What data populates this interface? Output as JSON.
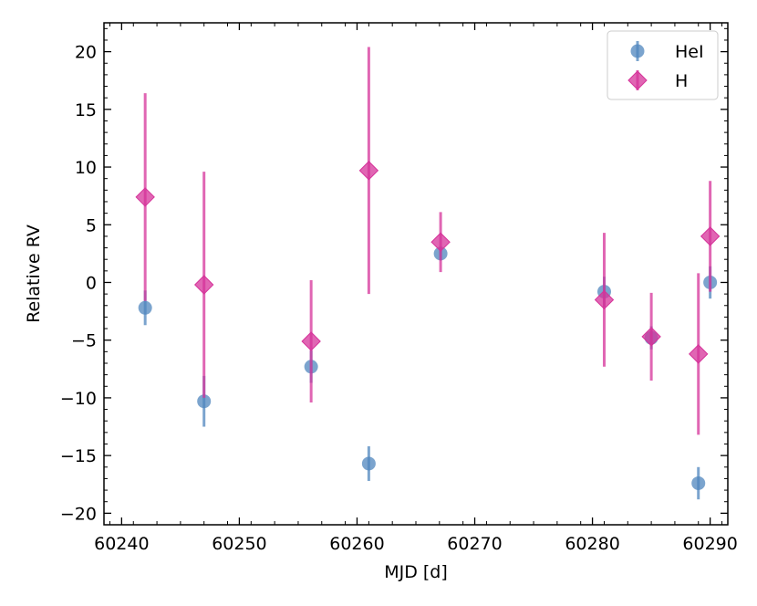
{
  "chart_data": {
    "type": "scatter",
    "xlabel": "MJD [d]",
    "ylabel": "Relative RV",
    "xlim": [
      60238.5,
      60291.5
    ],
    "ylim": [
      -21,
      22.5
    ],
    "xticks": [
      60240,
      60250,
      60260,
      60270,
      60280,
      60290
    ],
    "yticks": [
      -20,
      -15,
      -10,
      -5,
      0,
      5,
      10,
      15,
      20
    ],
    "grid": false,
    "legend_position": "top-right",
    "series": [
      {
        "name": "HeI",
        "marker": "circle",
        "color": "#4f86bd",
        "points": [
          {
            "x": 60242,
            "y": -2.2,
            "err": 1.5
          },
          {
            "x": 60247,
            "y": -10.3,
            "err": 2.2
          },
          {
            "x": 60256.1,
            "y": -7.3,
            "err": 1.4
          },
          {
            "x": 60261,
            "y": -15.7,
            "err": 1.5
          },
          {
            "x": 60267.1,
            "y": 2.5,
            "err": 0.6
          },
          {
            "x": 60281,
            "y": -0.8,
            "err": 1.3
          },
          {
            "x": 60285,
            "y": -4.8,
            "err": 1.0
          },
          {
            "x": 60289,
            "y": -17.4,
            "err": 1.4
          },
          {
            "x": 60290,
            "y": 0.0,
            "err": 1.4
          }
        ]
      },
      {
        "name": "H",
        "marker": "diamond",
        "color": "#d6339a",
        "points": [
          {
            "x": 60242,
            "y": 7.4,
            "err": 9.0
          },
          {
            "x": 60247,
            "y": -0.2,
            "err": 9.8
          },
          {
            "x": 60256.1,
            "y": -5.1,
            "err": 5.3
          },
          {
            "x": 60261,
            "y": 9.7,
            "err": 10.7
          },
          {
            "x": 60267.1,
            "y": 3.5,
            "err": 2.6
          },
          {
            "x": 60281,
            "y": -1.5,
            "err": 5.8
          },
          {
            "x": 60285,
            "y": -4.7,
            "err": 3.8
          },
          {
            "x": 60289,
            "y": -6.2,
            "err": 7.0
          },
          {
            "x": 60290,
            "y": 4.0,
            "err": 4.8
          }
        ]
      }
    ]
  }
}
